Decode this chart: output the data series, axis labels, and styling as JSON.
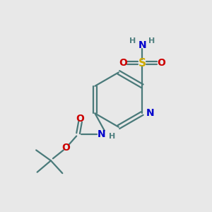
{
  "bg_color": "#e8e8e8",
  "bond_color": "#4a7a7a",
  "N_color": "#0000cc",
  "O_color": "#cc0000",
  "S_color": "#ccaa00",
  "H_color": "#508080",
  "figsize": [
    3.0,
    3.0
  ],
  "dpi": 100,
  "xlim": [
    0,
    10
  ],
  "ylim": [
    0,
    10
  ]
}
